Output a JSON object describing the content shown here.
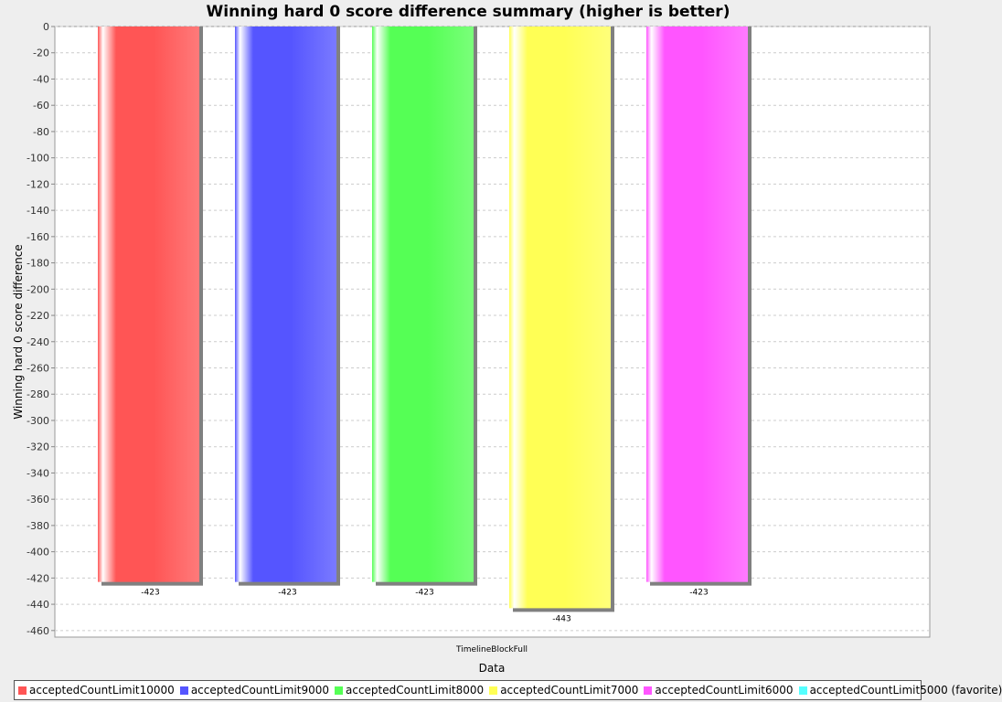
{
  "chart_data": {
    "type": "bar",
    "title": "Winning hard 0 score difference summary (higher is better)",
    "xlabel": "Data",
    "ylabel": "Winning hard 0 score difference",
    "categories": [
      "TimelineBlockFull"
    ],
    "ylim": [
      -465,
      0
    ],
    "yticks": [
      0,
      -20,
      -40,
      -60,
      -80,
      -100,
      -120,
      -140,
      -160,
      -180,
      -200,
      -220,
      -240,
      -260,
      -280,
      -300,
      -320,
      -340,
      -360,
      -380,
      -400,
      -420,
      -440,
      -460
    ],
    "grid": true,
    "legend_position": "bottom",
    "series": [
      {
        "name": "acceptedCountLimit10000",
        "values": [
          -423
        ],
        "color": "#ff5555",
        "value_label": "-423"
      },
      {
        "name": "acceptedCountLimit9000",
        "values": [
          -423
        ],
        "color": "#5555ff",
        "value_label": "-423"
      },
      {
        "name": "acceptedCountLimit8000",
        "values": [
          -423
        ],
        "color": "#55ff55",
        "value_label": "-423"
      },
      {
        "name": "acceptedCountLimit7000",
        "values": [
          -443
        ],
        "color": "#ffff55",
        "value_label": "-443"
      },
      {
        "name": "acceptedCountLimit6000",
        "values": [
          -423
        ],
        "color": "#ff55ff",
        "value_label": "-423"
      },
      {
        "name": "acceptedCountLimit5000 (favorite)",
        "values": [
          null
        ],
        "color": "#55ffff",
        "value_label": ""
      }
    ]
  }
}
